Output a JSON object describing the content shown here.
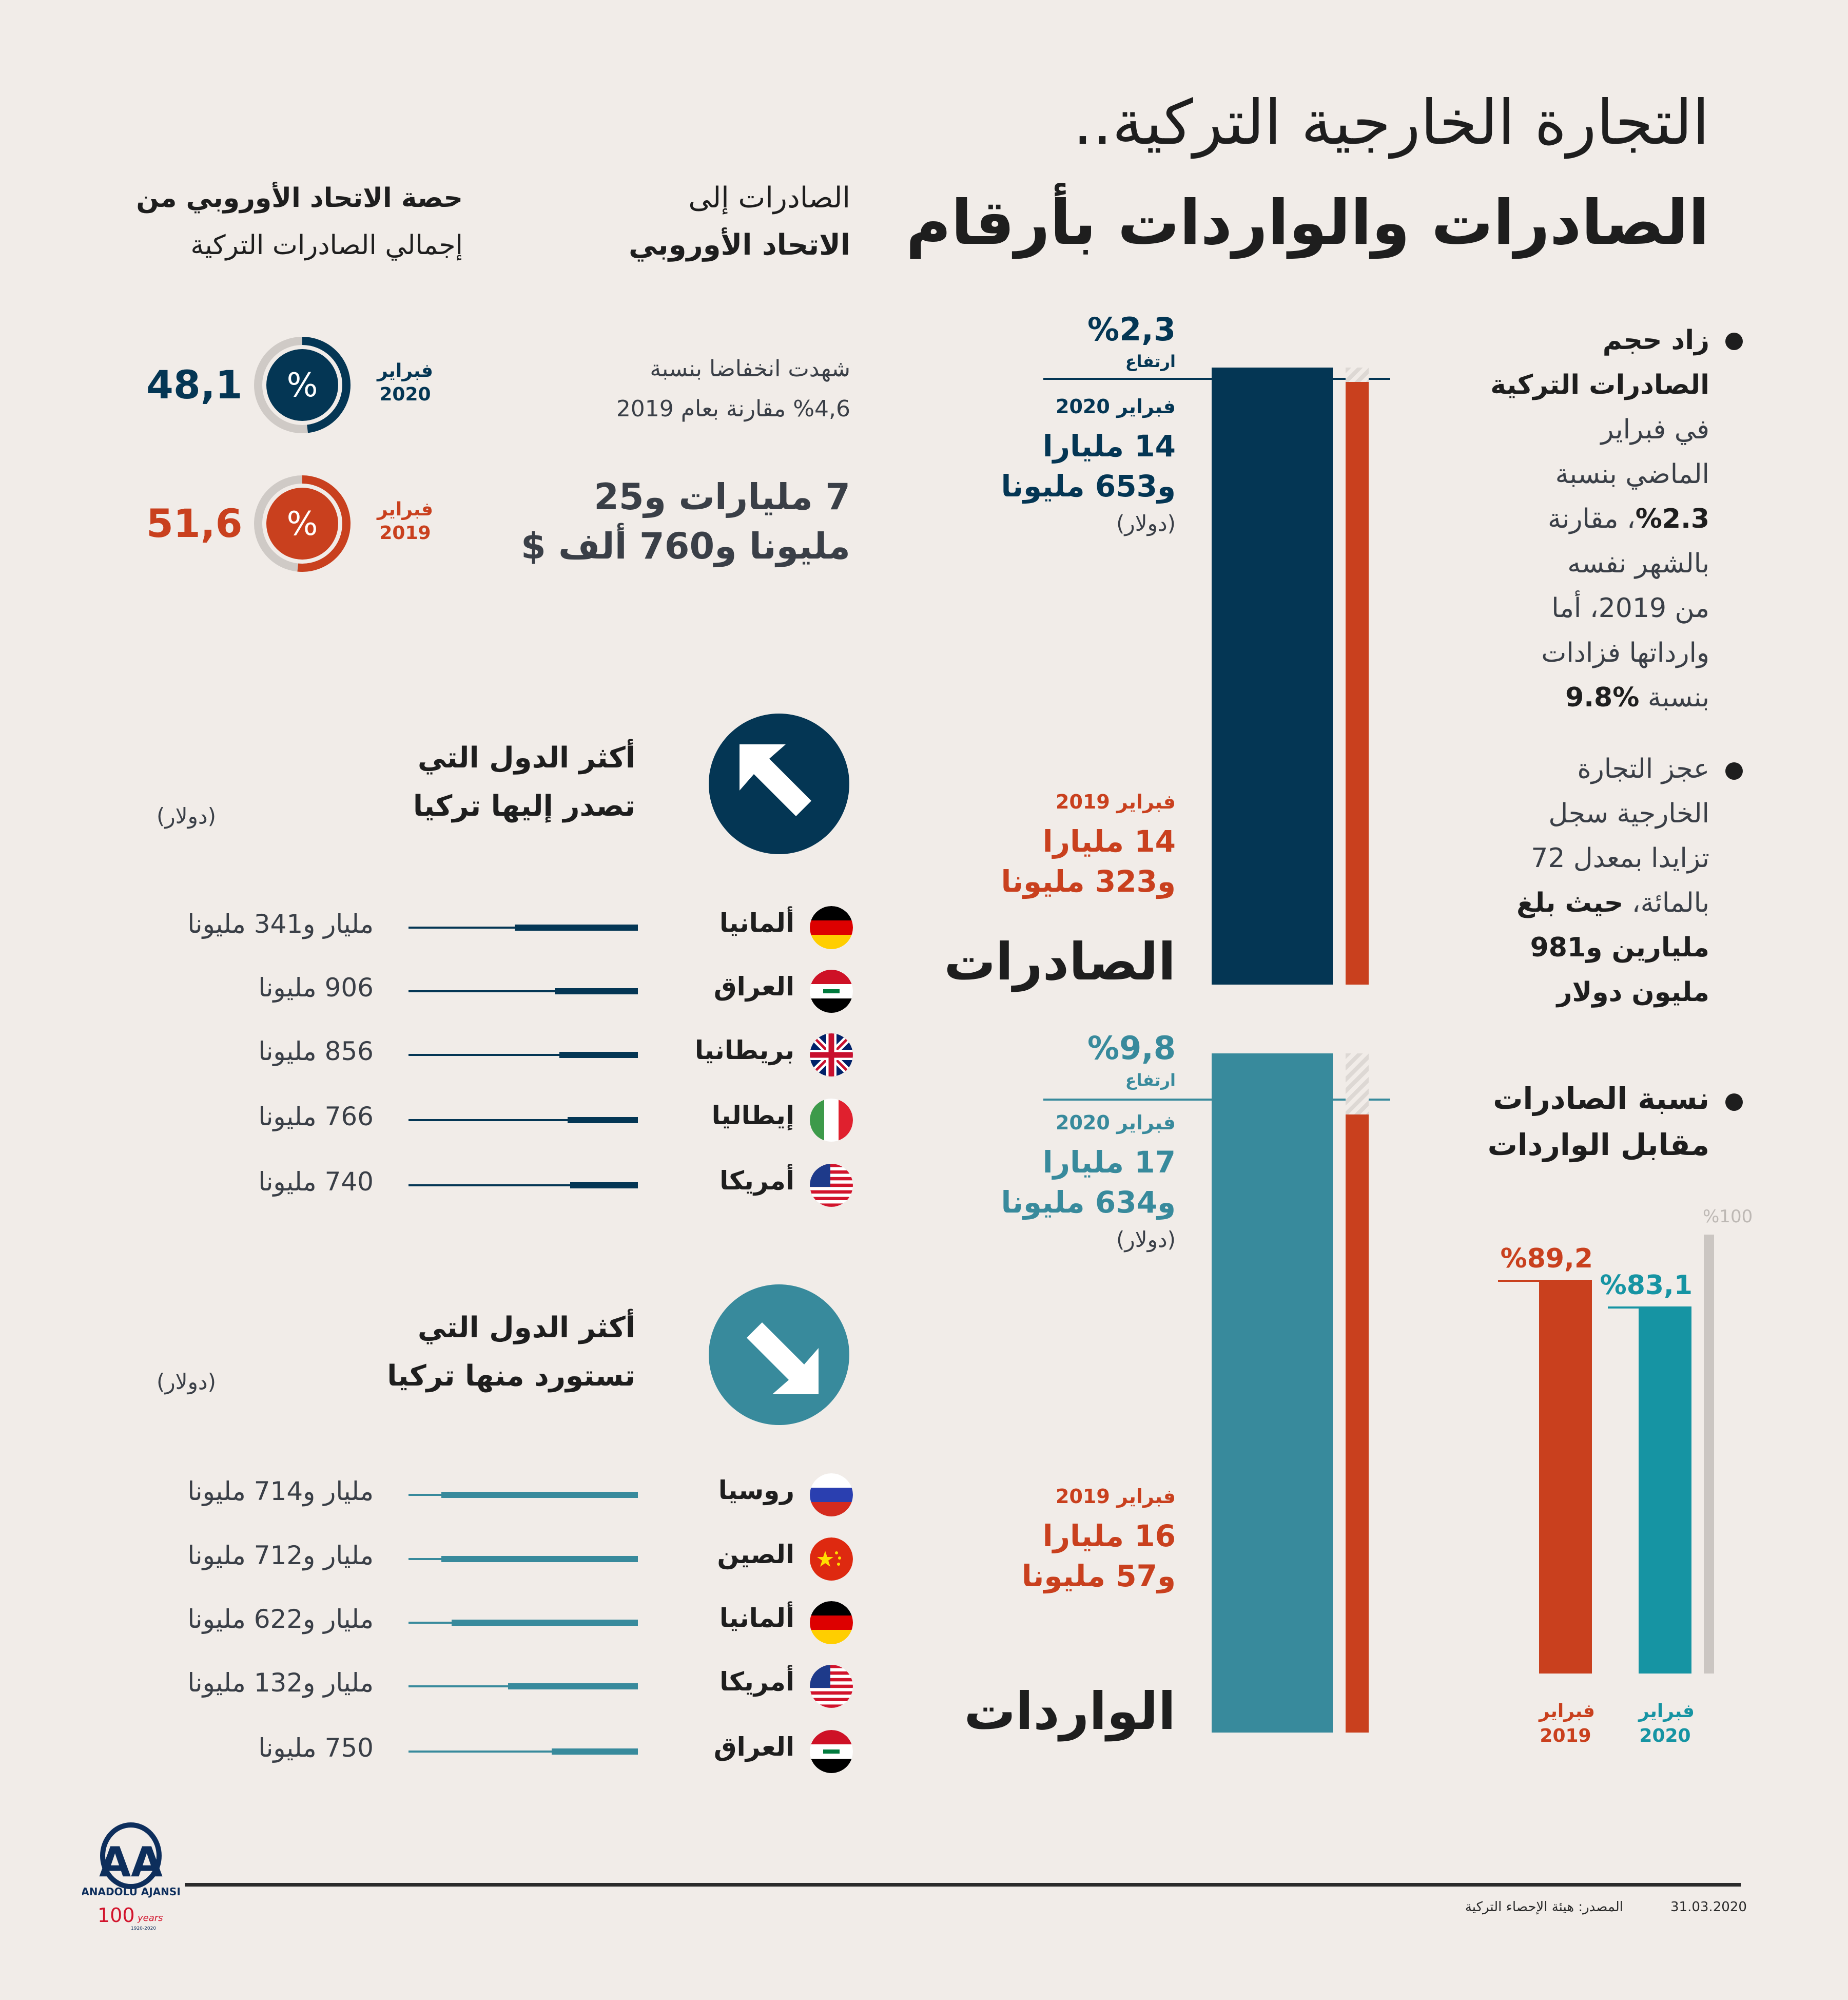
{
  "title": {
    "line1": "التجارة الخارجية التركية..",
    "line2": "الصادرات والواردات بأرقام"
  },
  "colors": {
    "background": "#f1ece8",
    "navy": "#043654",
    "orange": "#c9401e",
    "teal": "#388a9c",
    "teal_bright": "#1694a3",
    "gray": "#cbc6c2"
  },
  "bullets": {
    "b1": [
      "زاد حجم",
      "الصادرات التركية",
      "في فبراير",
      "الماضي بنسبة",
      "%2.3",
      "، مقارنة",
      "بالشهر نفسه",
      "من 2019، أما",
      "وارداتها فزادات",
      "بنسبة ",
      "%9.8"
    ],
    "b2": [
      "عجز التجارة",
      "الخارجية سجل",
      "تزايدا بمعدل 72",
      "بالمائة، ",
      "حيث بلغ",
      "مليارين و981",
      "مليون دولار"
    ],
    "b3": [
      "نسبة الصادرات",
      "مقابل الواردات"
    ]
  },
  "exports": {
    "label": "الصادرات",
    "change": "%2,3",
    "change_label": "ارتفاع",
    "current": {
      "period": "فبراير 2020",
      "line1": "14 مليارا",
      "line2": "و653 مليونا",
      "unit": "(دولار)",
      "value_musd": 14653
    },
    "previous": {
      "period": "فبراير 2019",
      "line1": "14 مليارا",
      "line2": "و323 مليونا",
      "value_musd": 14323
    }
  },
  "imports": {
    "label": "الواردات",
    "change": "%9,8",
    "change_label": "ارتفاع",
    "current": {
      "period": "فبراير 2020",
      "line1": "17 مليارا",
      "line2": "و634 مليونا",
      "unit": "(دولار)",
      "value_musd": 17634
    },
    "previous": {
      "period": "فبراير 2019",
      "line1": "16 مليارا",
      "line2": "و57 مليونا",
      "value_musd": 16057
    }
  },
  "ratio": {
    "max_label": "%100",
    "bars": [
      {
        "value": 89.2,
        "label": "%89,2",
        "period1": "فبراير",
        "period2": "2019",
        "color": "#c9401e"
      },
      {
        "value": 83.1,
        "label": "%83,1",
        "period1": "فبراير",
        "period2": "2020",
        "color": "#1694a3"
      }
    ]
  },
  "eu": {
    "heading1": "الصادرات إلى",
    "heading2": "الاتحاد الأوروبي",
    "desc1": "شهدت انخفاضا بنسبة",
    "desc2": "%4,6 مقارنة بعام 2019",
    "amount1": "7 مليارات و25",
    "amount2": "مليونا و760 ألف $",
    "share_heading1": "حصة الاتحاد الأوروبي من",
    "share_heading2": "إجمالي الصادرات التركية",
    "shares": [
      {
        "value": 48.1,
        "label": "48,1",
        "period1": "فبراير",
        "period2": "2020",
        "symbol": "%",
        "color": "#043654"
      },
      {
        "value": 51.6,
        "label": "51,6",
        "period1": "فبراير",
        "period2": "2019",
        "symbol": "%",
        "color": "#c9401e"
      }
    ]
  },
  "top_export": {
    "heading1": "أكثر الدول التي",
    "heading2": "تصدر إليها تركيا",
    "unit": "(دولار)",
    "icon": "arrow-up-left-icon",
    "rows": [
      {
        "country": "ألمانيا",
        "flag": "germany",
        "value": "مليار و341 مليونا",
        "musd": 1341
      },
      {
        "country": "العراق",
        "flag": "iraq",
        "value": "906 مليونا",
        "musd": 906
      },
      {
        "country": "بريطانيا",
        "flag": "uk",
        "value": "856 مليونا",
        "musd": 856
      },
      {
        "country": "إيطاليا",
        "flag": "italy",
        "value": "766 مليونا",
        "musd": 766
      },
      {
        "country": "أمريكا",
        "flag": "usa",
        "value": "740 مليونا",
        "musd": 740
      }
    ]
  },
  "top_import": {
    "heading1": "أكثر الدول التي",
    "heading2": "تستورد منها تركيا",
    "unit": "(دولار)",
    "icon": "arrow-down-right-icon",
    "rows": [
      {
        "country": "روسيا",
        "flag": "russia",
        "value": "مليار و714 مليونا",
        "musd": 1714
      },
      {
        "country": "الصين",
        "flag": "china",
        "value": "مليار و712 مليونا",
        "musd": 1712
      },
      {
        "country": "ألمانيا",
        "flag": "germany",
        "value": "مليار و622 مليونا",
        "musd": 1622
      },
      {
        "country": "أمريكا",
        "flag": "usa",
        "value": "مليار و132 مليونا",
        "musd": 1132
      },
      {
        "country": "العراق",
        "flag": "iraq",
        "value": "750 مليونا",
        "musd": 750
      }
    ]
  },
  "footer": {
    "source": "المصدر: هيئة الإحصاء التركية",
    "date": "31.03.2020",
    "logo_text": "ANADOLU AJANSI",
    "logo_years": "100 years 1920-2020"
  }
}
